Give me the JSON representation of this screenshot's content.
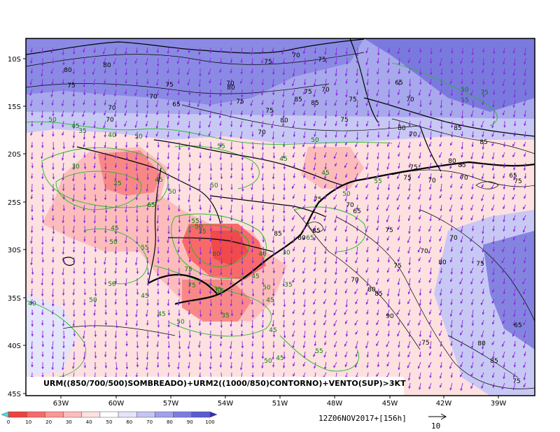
{
  "title": "URM((850/700/500)SOMBREADO)+URM2((1000/850)CONTORNO)+VENTO(SUP)>3KT",
  "timestamp": "12Z06NOV2017+[156h]",
  "wind_reference_label": "10",
  "lat_labels": [
    "10S",
    "15S",
    "20S",
    "25S",
    "30S",
    "35S",
    "40S",
    "45S"
  ],
  "lon_labels": [
    "63W",
    "60W",
    "57W",
    "54W",
    "51W",
    "48W",
    "45W",
    "42W",
    "39W"
  ],
  "colorbar": {
    "ticks": [
      "0",
      "10",
      "20",
      "30",
      "40",
      "50",
      "60",
      "70",
      "80",
      "90",
      "100"
    ],
    "colors": [
      "#f0403f",
      "#f86a6a",
      "#fa9696",
      "#fcbcbc",
      "#fde0e0",
      "#ffffff",
      "#e4e4fa",
      "#c4c4f4",
      "#a0a0ec",
      "#7c7ce0",
      "#5a5ad2"
    ]
  },
  "contour_labels_green": [
    "50",
    "45",
    "35",
    "40",
    "50",
    "55",
    "50",
    "45",
    "45",
    "55",
    "50",
    "30",
    "25",
    "45",
    "50",
    "50",
    "65",
    "45",
    "50",
    "55",
    "55",
    "35",
    "50",
    "75",
    "80",
    "30",
    "65",
    "45",
    "40",
    "50",
    "50",
    "45",
    "40",
    "50",
    "45",
    "35",
    "45",
    "75",
    "55",
    "50",
    "45",
    "55",
    "50",
    "65",
    "35",
    "45",
    "50",
    "55",
    "75",
    "35"
  ],
  "contour_labels_black": [
    "80",
    "80",
    "75",
    "75",
    "70",
    "70",
    "75",
    "75",
    "70",
    "75",
    "70",
    "75",
    "70",
    "70",
    "65",
    "75",
    "85",
    "85",
    "75",
    "80",
    "70",
    "75",
    "70",
    "65",
    "80",
    "80",
    "70",
    "85",
    "85",
    "85",
    "80",
    "75",
    "75",
    "70",
    "70",
    "75",
    "65",
    "75",
    "70",
    "65",
    "85",
    "80",
    "85",
    "75",
    "70",
    "70",
    "75",
    "80",
    "75",
    "70",
    "85",
    "80",
    "90",
    "75",
    "80",
    "85",
    "65",
    "75"
  ]
}
